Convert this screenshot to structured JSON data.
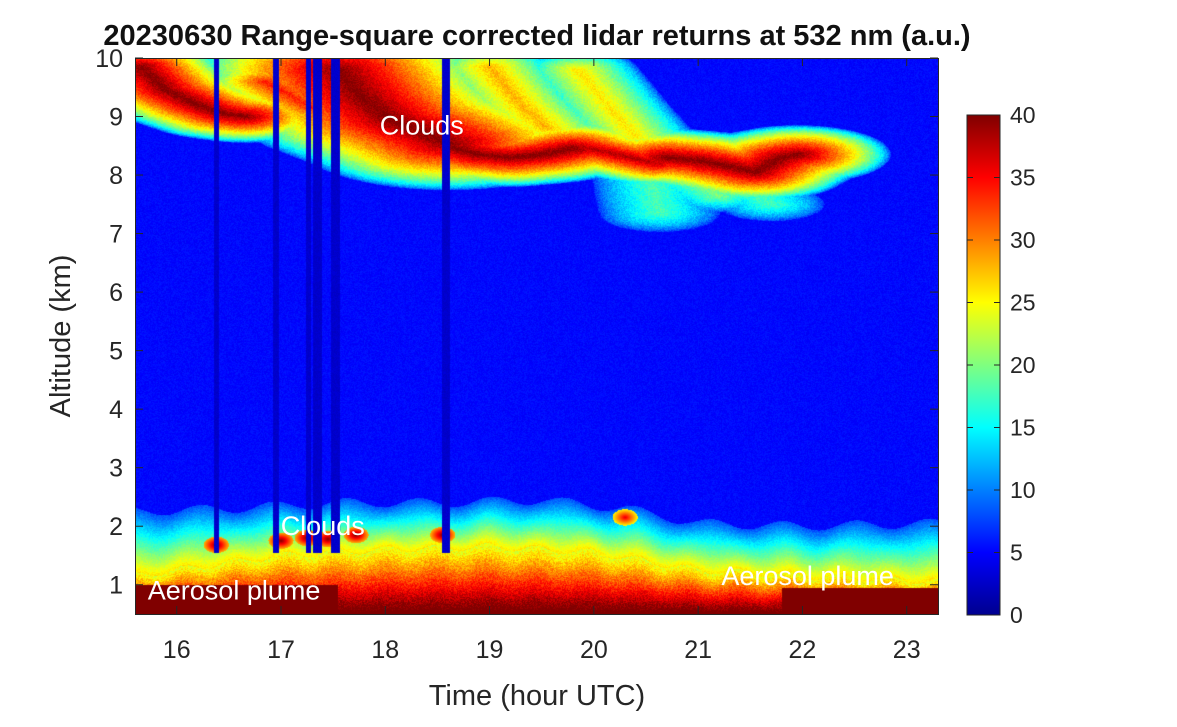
{
  "chart_data": {
    "type": "heatmap",
    "title": "20230630  Range-square corrected lidar returns at 532 nm (a.u.)",
    "xlabel": "Time (hour UTC)",
    "ylabel": "Altitude (km)",
    "xlim": [
      15.6,
      23.3
    ],
    "ylim": [
      0.5,
      10
    ],
    "xticks": [
      16,
      17,
      18,
      19,
      20,
      21,
      22,
      23
    ],
    "yticks": [
      1,
      2,
      3,
      4,
      5,
      6,
      7,
      8,
      9,
      10
    ],
    "colorbar": {
      "range": [
        0,
        40
      ],
      "ticks": [
        0,
        5,
        10,
        15,
        20,
        25,
        30,
        35,
        40
      ],
      "colormap": "jet"
    },
    "annotations": [
      {
        "text": "Clouds",
        "x": 18.35,
        "y": 8.85
      },
      {
        "text": "Clouds",
        "x": 17.4,
        "y": 2.0
      },
      {
        "text": "Aerosol plume",
        "x": 16.55,
        "y": 0.9
      },
      {
        "text": "Aerosol plume",
        "x": 22.05,
        "y": 1.15
      }
    ],
    "features": {
      "boundary_layer_top_km": [
        {
          "t": 15.6,
          "h": 2.25
        },
        {
          "t": 16.5,
          "h": 2.3
        },
        {
          "t": 17.5,
          "h": 2.4
        },
        {
          "t": 18.5,
          "h": 2.4
        },
        {
          "t": 19.5,
          "h": 2.45
        },
        {
          "t": 20.3,
          "h": 2.3
        },
        {
          "t": 21.0,
          "h": 2.05
        },
        {
          "t": 22.0,
          "h": 2.0
        },
        {
          "t": 23.3,
          "h": 2.05
        }
      ],
      "surface_aerosol_top_km": [
        {
          "t": 15.6,
          "h": 1.15
        },
        {
          "t": 17.0,
          "h": 1.5
        },
        {
          "t": 18.0,
          "h": 1.6
        },
        {
          "t": 19.0,
          "h": 1.65
        },
        {
          "t": 20.0,
          "h": 1.55
        },
        {
          "t": 21.0,
          "h": 1.25
        },
        {
          "t": 22.0,
          "h": 1.15
        },
        {
          "t": 23.3,
          "h": 1.05
        }
      ],
      "upper_cloud_tracks": [
        {
          "pts": [
            [
              15.65,
              9.85
            ],
            [
              15.9,
              9.45
            ],
            [
              16.2,
              9.2
            ],
            [
              16.45,
              9.05
            ],
            [
              16.65,
              9.0
            ]
          ],
          "width_km": 0.25,
          "value": 40
        },
        {
          "pts": [
            [
              16.85,
              9.6
            ],
            [
              17.15,
              9.3
            ],
            [
              17.3,
              9.15
            ]
          ],
          "width_km": 0.2,
          "value": 34
        },
        {
          "pts": [
            [
              17.55,
              9.8
            ],
            [
              17.8,
              9.3
            ],
            [
              18.05,
              8.95
            ],
            [
              18.35,
              8.75
            ],
            [
              18.6,
              8.55
            ]
          ],
          "width_km": 0.45,
          "value": 40
        },
        {
          "pts": [
            [
              18.6,
              8.5
            ],
            [
              18.9,
              8.35
            ],
            [
              19.2,
              8.3
            ],
            [
              19.5,
              8.35
            ],
            [
              19.8,
              8.45
            ]
          ],
          "width_km": 0.28,
          "value": 40
        },
        {
          "pts": [
            [
              19.85,
              8.5
            ],
            [
              20.1,
              8.4
            ],
            [
              20.35,
              8.3
            ],
            [
              20.6,
              8.2
            ]
          ],
          "width_km": 0.22,
          "value": 38
        },
        {
          "pts": [
            [
              20.7,
              8.3
            ],
            [
              21.0,
              8.25
            ],
            [
              21.3,
              8.15
            ],
            [
              21.55,
              8.05
            ],
            [
              21.8,
              8.3
            ],
            [
              21.95,
              8.35
            ]
          ],
          "width_km": 0.28,
          "value": 40
        },
        {
          "pts": [
            [
              19.0,
              9.85
            ],
            [
              19.3,
              9.2
            ],
            [
              19.55,
              8.8
            ]
          ],
          "width_km": 0.2,
          "value": 28
        },
        {
          "pts": [
            [
              19.85,
              9.8
            ],
            [
              20.15,
              9.15
            ],
            [
              20.4,
              8.65
            ]
          ],
          "width_km": 0.18,
          "value": 26
        },
        {
          "pts": [
            [
              20.55,
              8.0
            ],
            [
              20.6,
              7.55
            ],
            [
              20.63,
              7.35
            ]
          ],
          "width_km": 0.18,
          "value": 18
        },
        {
          "pts": [
            [
              20.95,
              7.9
            ],
            [
              21.2,
              7.65
            ]
          ],
          "width_km": 0.16,
          "value": 20
        },
        {
          "pts": [
            [
              21.5,
              7.75
            ],
            [
              21.7,
              7.5
            ]
          ],
          "width_km": 0.16,
          "value": 18
        }
      ],
      "low_cloud_blobs": [
        {
          "t": 16.38,
          "h": 1.68,
          "value": 40
        },
        {
          "t": 17.0,
          "h": 1.75,
          "value": 40
        },
        {
          "t": 17.25,
          "h": 1.8,
          "value": 40
        },
        {
          "t": 17.45,
          "h": 1.78,
          "value": 40
        },
        {
          "t": 17.72,
          "h": 1.85,
          "value": 40
        },
        {
          "t": 18.55,
          "h": 1.85,
          "value": 40
        },
        {
          "t": 20.3,
          "h": 2.15,
          "value": 36
        }
      ],
      "signal_gaps_hour": [
        {
          "t": 16.38,
          "w": 0.05
        },
        {
          "t": 16.95,
          "w": 0.06
        },
        {
          "t": 17.26,
          "w": 0.05
        },
        {
          "t": 17.35,
          "w": 0.08
        },
        {
          "t": 17.52,
          "w": 0.09
        },
        {
          "t": 18.58,
          "w": 0.08
        }
      ]
    }
  }
}
